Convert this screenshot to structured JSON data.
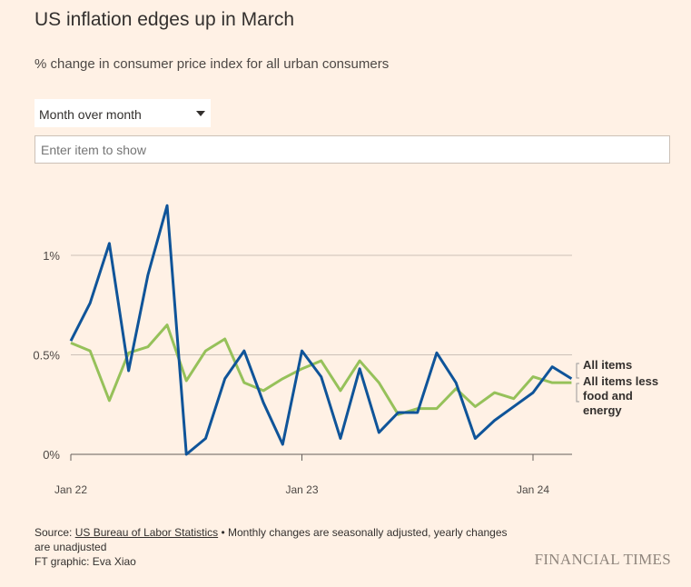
{
  "header": {
    "title": "US inflation edges up in March",
    "subtitle": "% change in consumer price index for all urban consumers"
  },
  "controls": {
    "period_selected": "Month over month",
    "item_placeholder": "Enter item to show"
  },
  "chart_data": {
    "type": "line",
    "x": [
      "Jan 22",
      "Feb 22",
      "Mar 22",
      "Apr 22",
      "May 22",
      "Jun 22",
      "Jul 22",
      "Aug 22",
      "Sep 22",
      "Oct 22",
      "Nov 22",
      "Dec 22",
      "Jan 23",
      "Feb 23",
      "Mar 23",
      "Apr 23",
      "May 23",
      "Jun 23",
      "Jul 23",
      "Aug 23",
      "Sep 23",
      "Oct 23",
      "Nov 23",
      "Dec 23",
      "Jan 24",
      "Feb 24",
      "Mar 24"
    ],
    "xticks": [
      "Jan 22",
      "Jan 23",
      "Jan 24"
    ],
    "yticks": [
      {
        "v": 0,
        "label": "0%"
      },
      {
        "v": 0.5,
        "label": "0.5%"
      },
      {
        "v": 1,
        "label": "1%"
      }
    ],
    "ylim": [
      0,
      1.3
    ],
    "grid": true,
    "legend": "right-end labels",
    "series": [
      {
        "name": "All items",
        "color": "#0f5499",
        "values": [
          0.57,
          0.76,
          1.06,
          0.42,
          0.9,
          1.25,
          0.0,
          0.08,
          0.38,
          0.52,
          0.26,
          0.05,
          0.52,
          0.39,
          0.08,
          0.43,
          0.11,
          0.21,
          0.21,
          0.51,
          0.36,
          0.08,
          0.17,
          0.24,
          0.31,
          0.44,
          0.38
        ]
      },
      {
        "name": "All items less food and energy",
        "color": "#96c15a",
        "values": [
          0.56,
          0.52,
          0.27,
          0.51,
          0.54,
          0.65,
          0.37,
          0.52,
          0.58,
          0.36,
          0.32,
          0.38,
          0.43,
          0.47,
          0.32,
          0.47,
          0.36,
          0.2,
          0.23,
          0.23,
          0.33,
          0.24,
          0.31,
          0.28,
          0.39,
          0.36,
          0.36
        ]
      }
    ],
    "legend_lines": [
      [
        "All items"
      ],
      [
        "All items less",
        "food and",
        "energy"
      ]
    ]
  },
  "footer": {
    "source_prefix": "Source: ",
    "source_link": "US Bureau of Labor Statistics",
    "source_note": " • Monthly changes are seasonally adjusted, yearly changes are unadjusted",
    "credit": "FT graphic: Eva Xiao",
    "brand": "FINANCIAL TIMES"
  }
}
